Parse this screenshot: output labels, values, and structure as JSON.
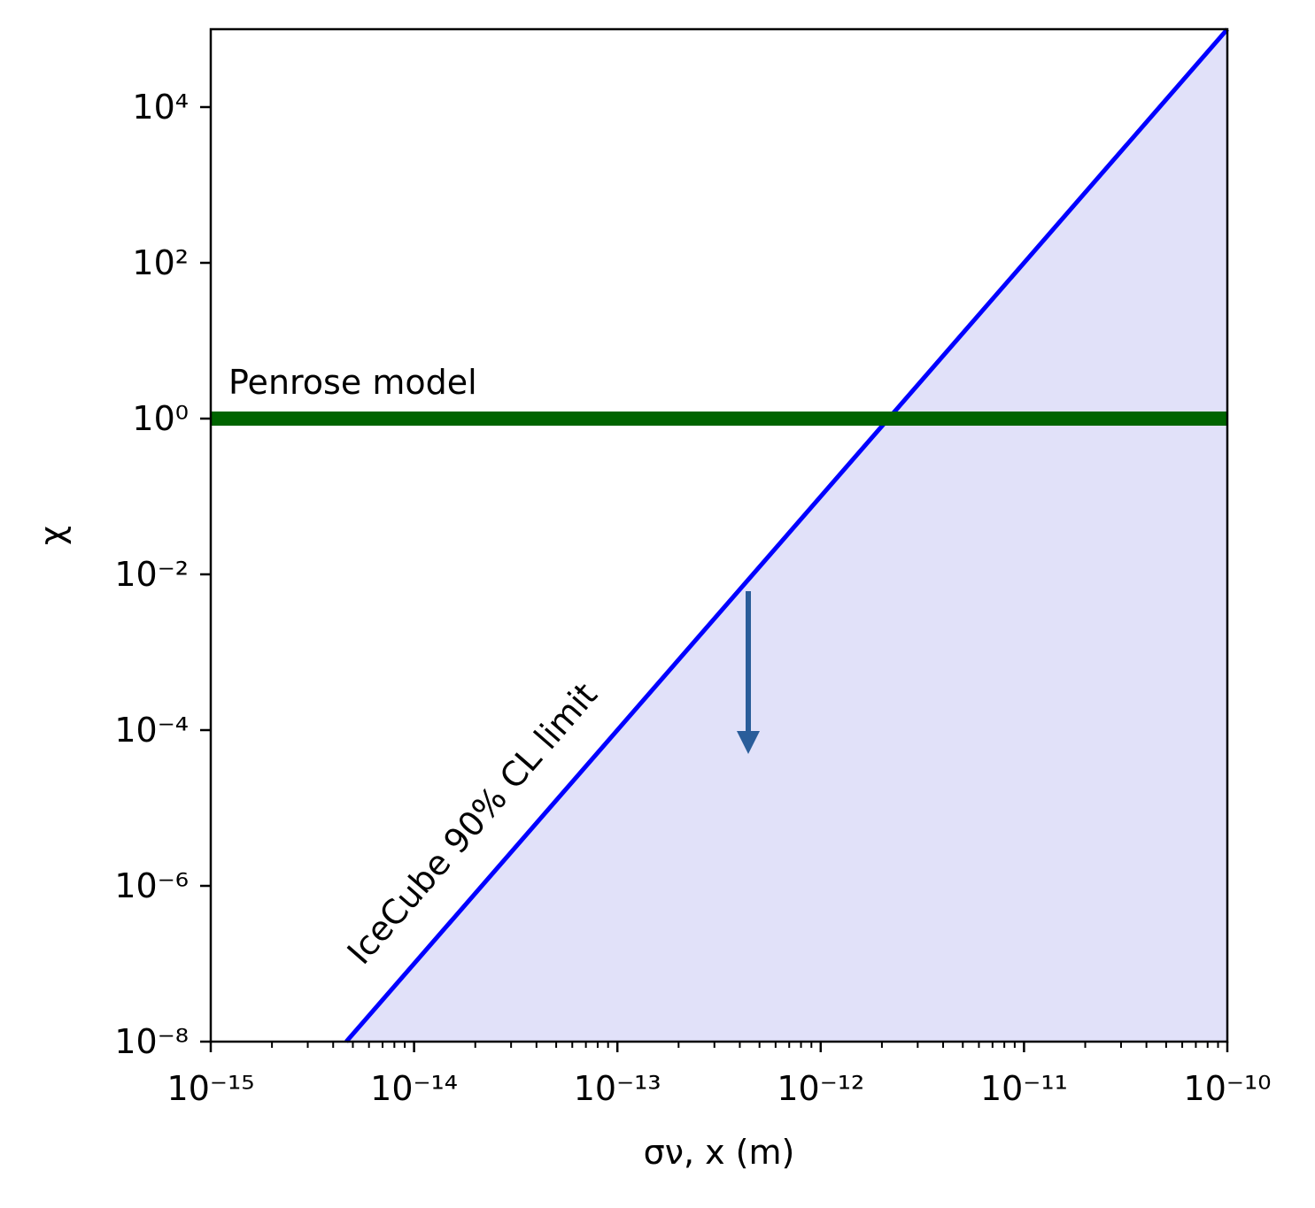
{
  "chart_data": {
    "type": "line",
    "xlabel": "σν, x (m)",
    "ylabel": "χ",
    "xscale": "log",
    "yscale": "log",
    "xlim": [
      1e-15,
      1e-10
    ],
    "ylim": [
      1e-08,
      100000.0
    ],
    "xticks": [
      {
        "value": 1e-15,
        "label": "10⁻¹⁵"
      },
      {
        "value": 1e-14,
        "label": "10⁻¹⁴"
      },
      {
        "value": 1e-13,
        "label": "10⁻¹³"
      },
      {
        "value": 1e-12,
        "label": "10⁻¹²"
      },
      {
        "value": 1e-11,
        "label": "10⁻¹¹"
      },
      {
        "value": 1e-10,
        "label": "10⁻¹⁰"
      }
    ],
    "xminorticks": [
      2e-15,
      3e-15,
      4e-15,
      5e-15,
      6e-15,
      7e-15,
      8e-15,
      9e-15,
      2e-14,
      3e-14,
      4e-14,
      5e-14,
      6e-14,
      7e-14,
      8e-14,
      9e-14,
      2e-13,
      3e-13,
      4e-13,
      5e-13,
      6e-13,
      7e-13,
      8e-13,
      9e-13,
      2e-12,
      3e-12,
      4e-12,
      5e-12,
      6e-12,
      7e-12,
      8e-12,
      9e-12,
      2e-11,
      3e-11,
      4e-11,
      5e-11,
      6e-11,
      7e-11,
      8e-11,
      9e-11
    ],
    "yticks": [
      {
        "value": 1e-08,
        "label": "10⁻⁸"
      },
      {
        "value": 1e-06,
        "label": "10⁻⁶"
      },
      {
        "value": 0.0001,
        "label": "10⁻⁴"
      },
      {
        "value": 0.01,
        "label": "10⁻²"
      },
      {
        "value": 1,
        "label": "10⁰"
      },
      {
        "value": 100,
        "label": "10²"
      },
      {
        "value": 10000,
        "label": "10⁴"
      }
    ],
    "series": [
      {
        "name": "IceCube 90% CL limit",
        "color": "#0000ff",
        "fill": "#e1e1f9",
        "x": [
          4.64e-15,
          1e-10
        ],
        "values": [
          1e-08,
          100000.0
        ]
      },
      {
        "name": "Penrose model",
        "color": "#006400",
        "label_color": "#008000",
        "x": [
          1e-15,
          1e-10
        ],
        "values": [
          1,
          1
        ]
      }
    ]
  }
}
